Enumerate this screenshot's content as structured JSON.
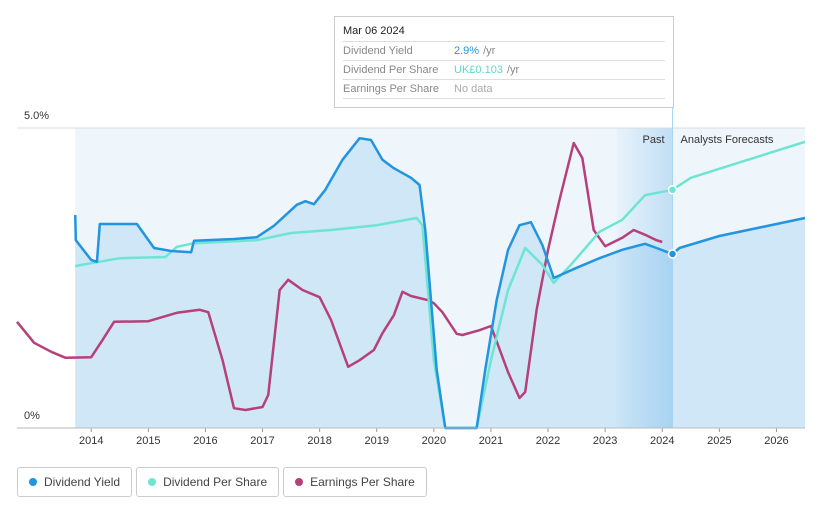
{
  "chart_data": {
    "type": "line",
    "xlim": [
      2012.7,
      2026.5
    ],
    "xticks": [
      2014,
      2015,
      2016,
      2017,
      2018,
      2019,
      2020,
      2021,
      2022,
      2023,
      2024,
      2025,
      2026
    ],
    "ylim": [
      0,
      5
    ],
    "yticks": [
      {
        "value": 0,
        "label": "0%"
      },
      {
        "value": 5,
        "label": "5.0%"
      }
    ],
    "grid": true,
    "past_band": [
      2023.2,
      2024.18
    ],
    "annotations": [
      "Past",
      "Analysts Forecasts"
    ],
    "series": [
      {
        "name": "Dividend Yield",
        "color": "#2394df",
        "x": [
          2013.72,
          2013.73,
          2014.0,
          2014.1,
          2014.15,
          2014.8,
          2015.1,
          2015.4,
          2015.75,
          2015.8,
          2016.5,
          2016.9,
          2017.2,
          2017.6,
          2017.75,
          2017.9,
          2018.1,
          2018.4,
          2018.7,
          2018.9,
          2019.1,
          2019.3,
          2019.6,
          2019.75,
          2019.85,
          2020.05,
          2020.2,
          2020.75,
          2020.9,
          2021.1,
          2021.3,
          2021.5,
          2021.7,
          2021.9,
          2022.1,
          2022.5,
          2022.9,
          2023.3,
          2023.7,
          2023.9,
          2024.18,
          2024.3,
          2025.0,
          2026.5
        ],
        "values": [
          3.55,
          3.13,
          2.8,
          2.77,
          3.4,
          3.4,
          3.0,
          2.95,
          2.93,
          3.12,
          3.15,
          3.18,
          3.37,
          3.72,
          3.78,
          3.73,
          3.97,
          4.47,
          4.83,
          4.8,
          4.47,
          4.33,
          4.17,
          4.05,
          3.3,
          0.97,
          0,
          0,
          0.97,
          2.13,
          2.97,
          3.38,
          3.43,
          3.05,
          2.5,
          2.67,
          2.83,
          2.97,
          3.07,
          3.0,
          2.9,
          3.0,
          3.2,
          3.5
        ]
      },
      {
        "name": "Dividend Per Share",
        "color": "#6ce5d3",
        "x": [
          2013.72,
          2014.2,
          2014.5,
          2015.3,
          2015.5,
          2015.8,
          2016.9,
          2017.5,
          2018.2,
          2019.0,
          2019.7,
          2019.8,
          2020.0,
          2020.2,
          2020.75,
          2021.0,
          2021.3,
          2021.6,
          2021.9,
          2022.1,
          2022.4,
          2022.9,
          2023.3,
          2023.7,
          2024.18,
          2024.5,
          2025.2,
          2026.5
        ],
        "values": [
          2.7,
          2.78,
          2.83,
          2.85,
          3.02,
          3.08,
          3.13,
          3.25,
          3.3,
          3.38,
          3.5,
          3.38,
          1.13,
          0,
          0,
          1.13,
          2.3,
          3.0,
          2.72,
          2.42,
          2.72,
          3.27,
          3.47,
          3.88,
          3.97,
          4.17,
          4.38,
          4.77
        ]
      },
      {
        "name": "Earnings Per Share",
        "color": "#b5407a",
        "x": [
          2012.7,
          2013.0,
          2013.3,
          2013.55,
          2014.0,
          2014.2,
          2014.4,
          2015.0,
          2015.5,
          2015.9,
          2016.05,
          2016.3,
          2016.5,
          2016.7,
          2017.0,
          2017.1,
          2017.3,
          2017.45,
          2017.7,
          2018.0,
          2018.2,
          2018.5,
          2018.7,
          2018.95,
          2019.1,
          2019.3,
          2019.45,
          2019.6,
          2019.9,
          2020.0,
          2020.15,
          2020.4,
          2020.5,
          2020.8,
          2021.0,
          2021.3,
          2021.5,
          2021.6,
          2021.8,
          2022.0,
          2022.2,
          2022.45,
          2022.6,
          2022.8,
          2023.0,
          2023.3,
          2023.5,
          2023.7,
          2023.9,
          2024.0
        ],
        "values": [
          1.77,
          1.42,
          1.27,
          1.17,
          1.18,
          1.47,
          1.77,
          1.78,
          1.92,
          1.97,
          1.93,
          1.13,
          0.33,
          0.3,
          0.35,
          0.55,
          2.3,
          2.47,
          2.3,
          2.18,
          1.8,
          1.02,
          1.13,
          1.3,
          1.58,
          1.88,
          2.27,
          2.2,
          2.13,
          2.08,
          1.93,
          1.57,
          1.55,
          1.63,
          1.7,
          0.93,
          0.5,
          0.6,
          1.97,
          2.97,
          3.8,
          4.75,
          4.5,
          3.3,
          3.03,
          3.17,
          3.3,
          3.22,
          3.13,
          3.1
        ]
      }
    ]
  },
  "tooltip": {
    "date": "Mar 06 2024",
    "rows": [
      {
        "label": "Dividend Yield",
        "value": "2.9%",
        "unit": "/yr"
      },
      {
        "label": "Dividend Per Share",
        "value": "UK£0.103",
        "unit": "/yr"
      },
      {
        "label": "Earnings Per Share",
        "value": "No data"
      }
    ]
  }
}
